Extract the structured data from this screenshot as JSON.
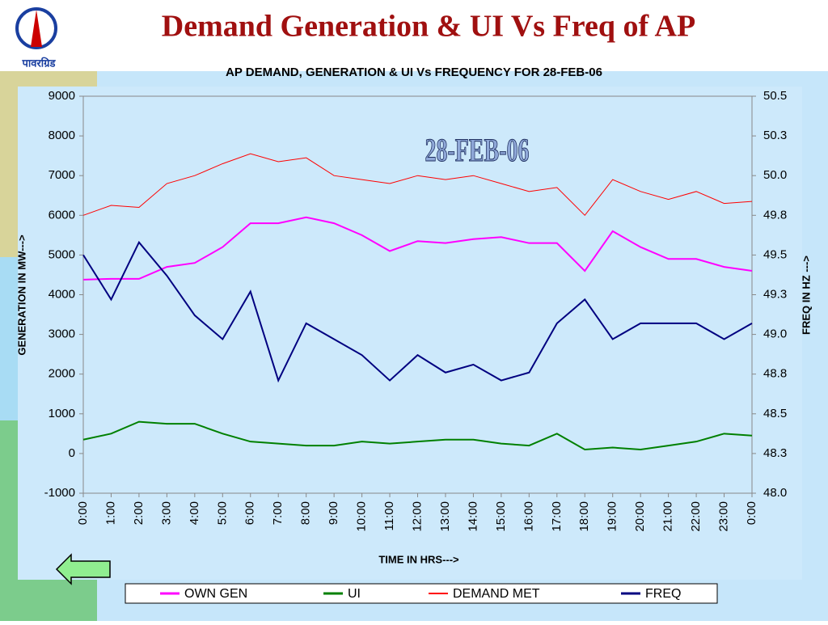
{
  "slide_title": "Demand Generation & UI Vs Freq of AP",
  "logo_text": "पावरग्रिड",
  "chart_data": {
    "type": "line",
    "title": "AP  DEMAND, GENERATION & UI Vs FREQUENCY FOR 28-FEB-06",
    "annotation": "28-FEB-06",
    "x_label": "TIME IN HRS--->",
    "y_label": "GENERATION IN MW--->",
    "y2_label": "FREQ IN HZ --->",
    "categories": [
      "0:00",
      "1:00",
      "2:00",
      "3:00",
      "4:00",
      "5:00",
      "6:00",
      "7:00",
      "8:00",
      "9:00",
      "10:00",
      "11:00",
      "12:00",
      "13:00",
      "14:00",
      "15:00",
      "16:00",
      "17:00",
      "18:00",
      "19:00",
      "20:00",
      "21:00",
      "22:00",
      "23:00",
      "0:00"
    ],
    "ylim": [
      -1000,
      9000
    ],
    "yticks": [
      -1000,
      0,
      1000,
      2000,
      3000,
      4000,
      5000,
      6000,
      7000,
      8000,
      9000
    ],
    "y2lim": [
      48,
      50.5
    ],
    "y2ticks": [
      {
        "value": 48,
        "label": "48.0"
      },
      {
        "value": 48.25,
        "label": "48.3"
      },
      {
        "value": 48.5,
        "label": "48.5"
      },
      {
        "value": 48.75,
        "label": "48.8"
      },
      {
        "value": 49,
        "label": "49.0"
      },
      {
        "value": 49.25,
        "label": "49.3"
      },
      {
        "value": 49.5,
        "label": "49.5"
      },
      {
        "value": 49.75,
        "label": "49.8"
      },
      {
        "value": 50,
        "label": "50.0"
      },
      {
        "value": 50.25,
        "label": "50.3"
      },
      {
        "value": 50.5,
        "label": "50.5"
      }
    ],
    "series": [
      {
        "name": "OWN GEN",
        "color": "#ff00ff",
        "width": 2,
        "values": [
          4380,
          4400,
          4400,
          4700,
          4800,
          5200,
          5800,
          5800,
          5950,
          5800,
          5500,
          5100,
          5350,
          5300,
          5400,
          5450,
          5300,
          5300,
          4600,
          5600,
          5200,
          4900,
          4900,
          4700,
          4600
        ]
      },
      {
        "name": "UI",
        "color": "#008000",
        "width": 2,
        "values": [
          350,
          500,
          800,
          750,
          750,
          500,
          300,
          250,
          200,
          200,
          300,
          250,
          300,
          350,
          350,
          250,
          200,
          500,
          100,
          150,
          100,
          200,
          300,
          500,
          450
        ]
      },
      {
        "name": "DEMAND MET",
        "color": "#ff0000",
        "width": 1,
        "values": [
          6000,
          6250,
          6200,
          6800,
          7000,
          7300,
          7550,
          7350,
          7450,
          7000,
          6900,
          6800,
          7000,
          6900,
          7000,
          6800,
          6600,
          6700,
          6000,
          6900,
          6600,
          6400,
          6600,
          6300,
          6350
        ]
      },
      {
        "name": "FREQ",
        "color": "#000080",
        "width": 2,
        "axis": "y2",
        "values": [
          49.5,
          49.22,
          49.58,
          49.37,
          49.12,
          48.97,
          49.27,
          48.71,
          49.07,
          48.97,
          48.87,
          48.71,
          48.87,
          48.76,
          48.81,
          48.71,
          48.76,
          49.07,
          49.22,
          48.97,
          49.07,
          49.07,
          49.07,
          48.97,
          49.07
        ]
      }
    ]
  }
}
